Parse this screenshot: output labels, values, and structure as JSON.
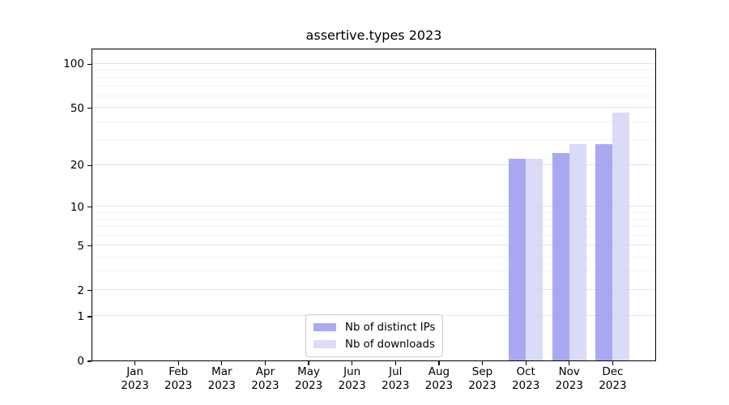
{
  "title": "assertive.types 2023",
  "legend": {
    "items": [
      {
        "label": "Nb of distinct IPs",
        "color": "#a9a9f2"
      },
      {
        "label": "Nb of downloads",
        "color": "#dcdcf8"
      }
    ]
  },
  "chart_data": {
    "type": "bar",
    "title": "assertive.types 2023",
    "categories": [
      "Jan",
      "Feb",
      "Mar",
      "Apr",
      "May",
      "Jun",
      "Jul",
      "Aug",
      "Sep",
      "Oct",
      "Nov",
      "Dec"
    ],
    "year_label": "2023",
    "series": [
      {
        "name": "Nb of distinct IPs",
        "color": "#a9a9f2",
        "fill": "rgba(148,148,239,0.8)",
        "values": [
          0,
          0,
          0,
          0,
          0,
          0,
          0,
          0,
          0,
          22,
          24,
          28
        ]
      },
      {
        "name": "Nb of downloads",
        "color": "#dcdcf8",
        "fill": "rgba(209,209,248,0.8)",
        "values": [
          0,
          0,
          0,
          0,
          0,
          0,
          0,
          0,
          0,
          22,
          28,
          46
        ]
      }
    ],
    "xlabel": "",
    "ylabel": "",
    "y_scale": "log1p",
    "ylim": [
      0,
      128
    ],
    "y_ticks": [
      0,
      1,
      2,
      5,
      10,
      20,
      50,
      100
    ],
    "y_minor_gridlines": [
      3,
      4,
      6,
      7,
      8,
      9,
      30,
      40,
      60,
      70,
      80,
      90
    ],
    "grid": true,
    "legend_position": "bottom-center",
    "axis_color": "#000000",
    "major_grid_color": "#e4e4e4",
    "minor_grid_color": "#f2f2f2"
  }
}
